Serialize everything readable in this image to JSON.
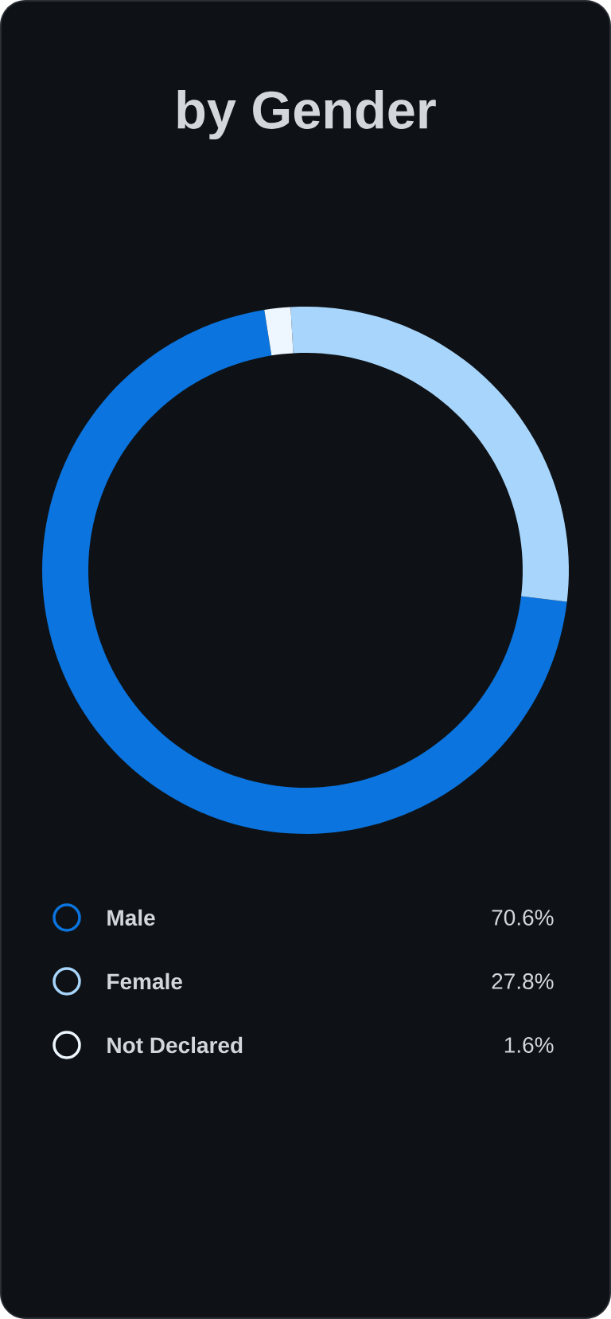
{
  "chart_data": {
    "type": "donut",
    "title": "by Gender",
    "categories": [
      "Male",
      "Female",
      "Not Declared"
    ],
    "values": [
      70.6,
      27.8,
      1.6
    ],
    "colors": [
      "#0b74de",
      "#a8d5fb",
      "#eef7ff"
    ],
    "value_labels": [
      "70.6%",
      "27.8%",
      "1.6%"
    ],
    "legend": "bottom"
  }
}
